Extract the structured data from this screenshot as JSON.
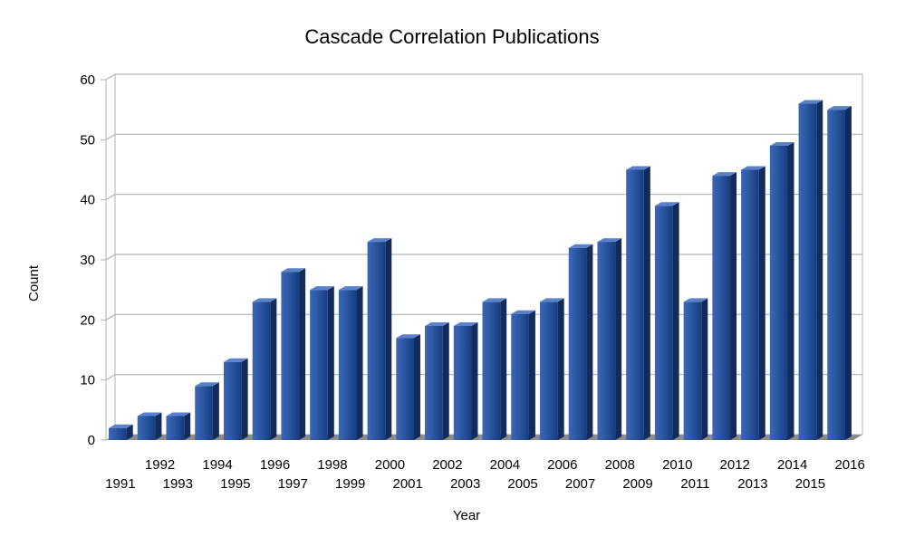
{
  "chart_data": {
    "type": "bar",
    "title": "Cascade Correlation Publications",
    "xlabel": "Year",
    "ylabel": "Count",
    "ylim": [
      0,
      60
    ],
    "yticks": [
      0,
      10,
      20,
      30,
      40,
      50,
      60
    ],
    "grid": true,
    "categories": [
      "1991",
      "1992",
      "1993",
      "1994",
      "1995",
      "1996",
      "1997",
      "1998",
      "1999",
      "2000",
      "2001",
      "2002",
      "2003",
      "2004",
      "2005",
      "2006",
      "2007",
      "2008",
      "2009",
      "2010",
      "2011",
      "2012",
      "2013",
      "2014",
      "2015",
      "2016"
    ],
    "values": [
      2,
      4,
      4,
      9,
      13,
      23,
      28,
      25,
      25,
      33,
      17,
      19,
      19,
      23,
      21,
      23,
      32,
      33,
      45,
      39,
      23,
      44,
      45,
      49,
      56,
      55
    ],
    "bar_color": "#1f4a93"
  }
}
